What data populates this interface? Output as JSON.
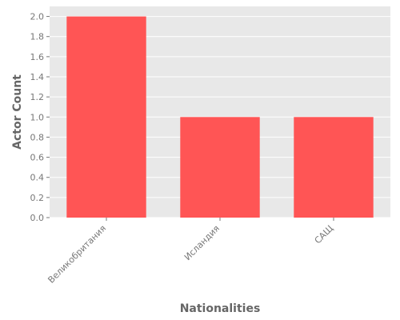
{
  "chart_data": {
    "type": "bar",
    "title": "",
    "xlabel": "Nationalities",
    "ylabel": "Actor Count",
    "categories": [
      "Великобритания",
      "Исландия",
      "САЩ"
    ],
    "values": [
      2,
      1,
      1
    ],
    "ylim": [
      0,
      2.1
    ],
    "yticks": [
      0.0,
      0.2,
      0.4,
      0.6,
      0.8,
      1.0,
      1.2,
      1.4,
      1.6,
      1.8,
      2.0
    ],
    "grid": true,
    "bar_color": "#ff5555",
    "background_color": "#e8e8e8",
    "grid_color": "#ffffff",
    "text_color": "#777777"
  }
}
